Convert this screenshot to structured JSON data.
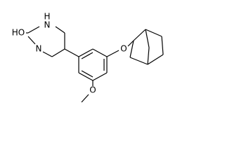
{
  "atoms": [
    {
      "label": "H"
    },
    {
      "label": "N"
    },
    {
      "label": "HO"
    },
    {
      "label": "N"
    },
    {
      "label": "O"
    },
    {
      "label": "O"
    }
  ]
}
